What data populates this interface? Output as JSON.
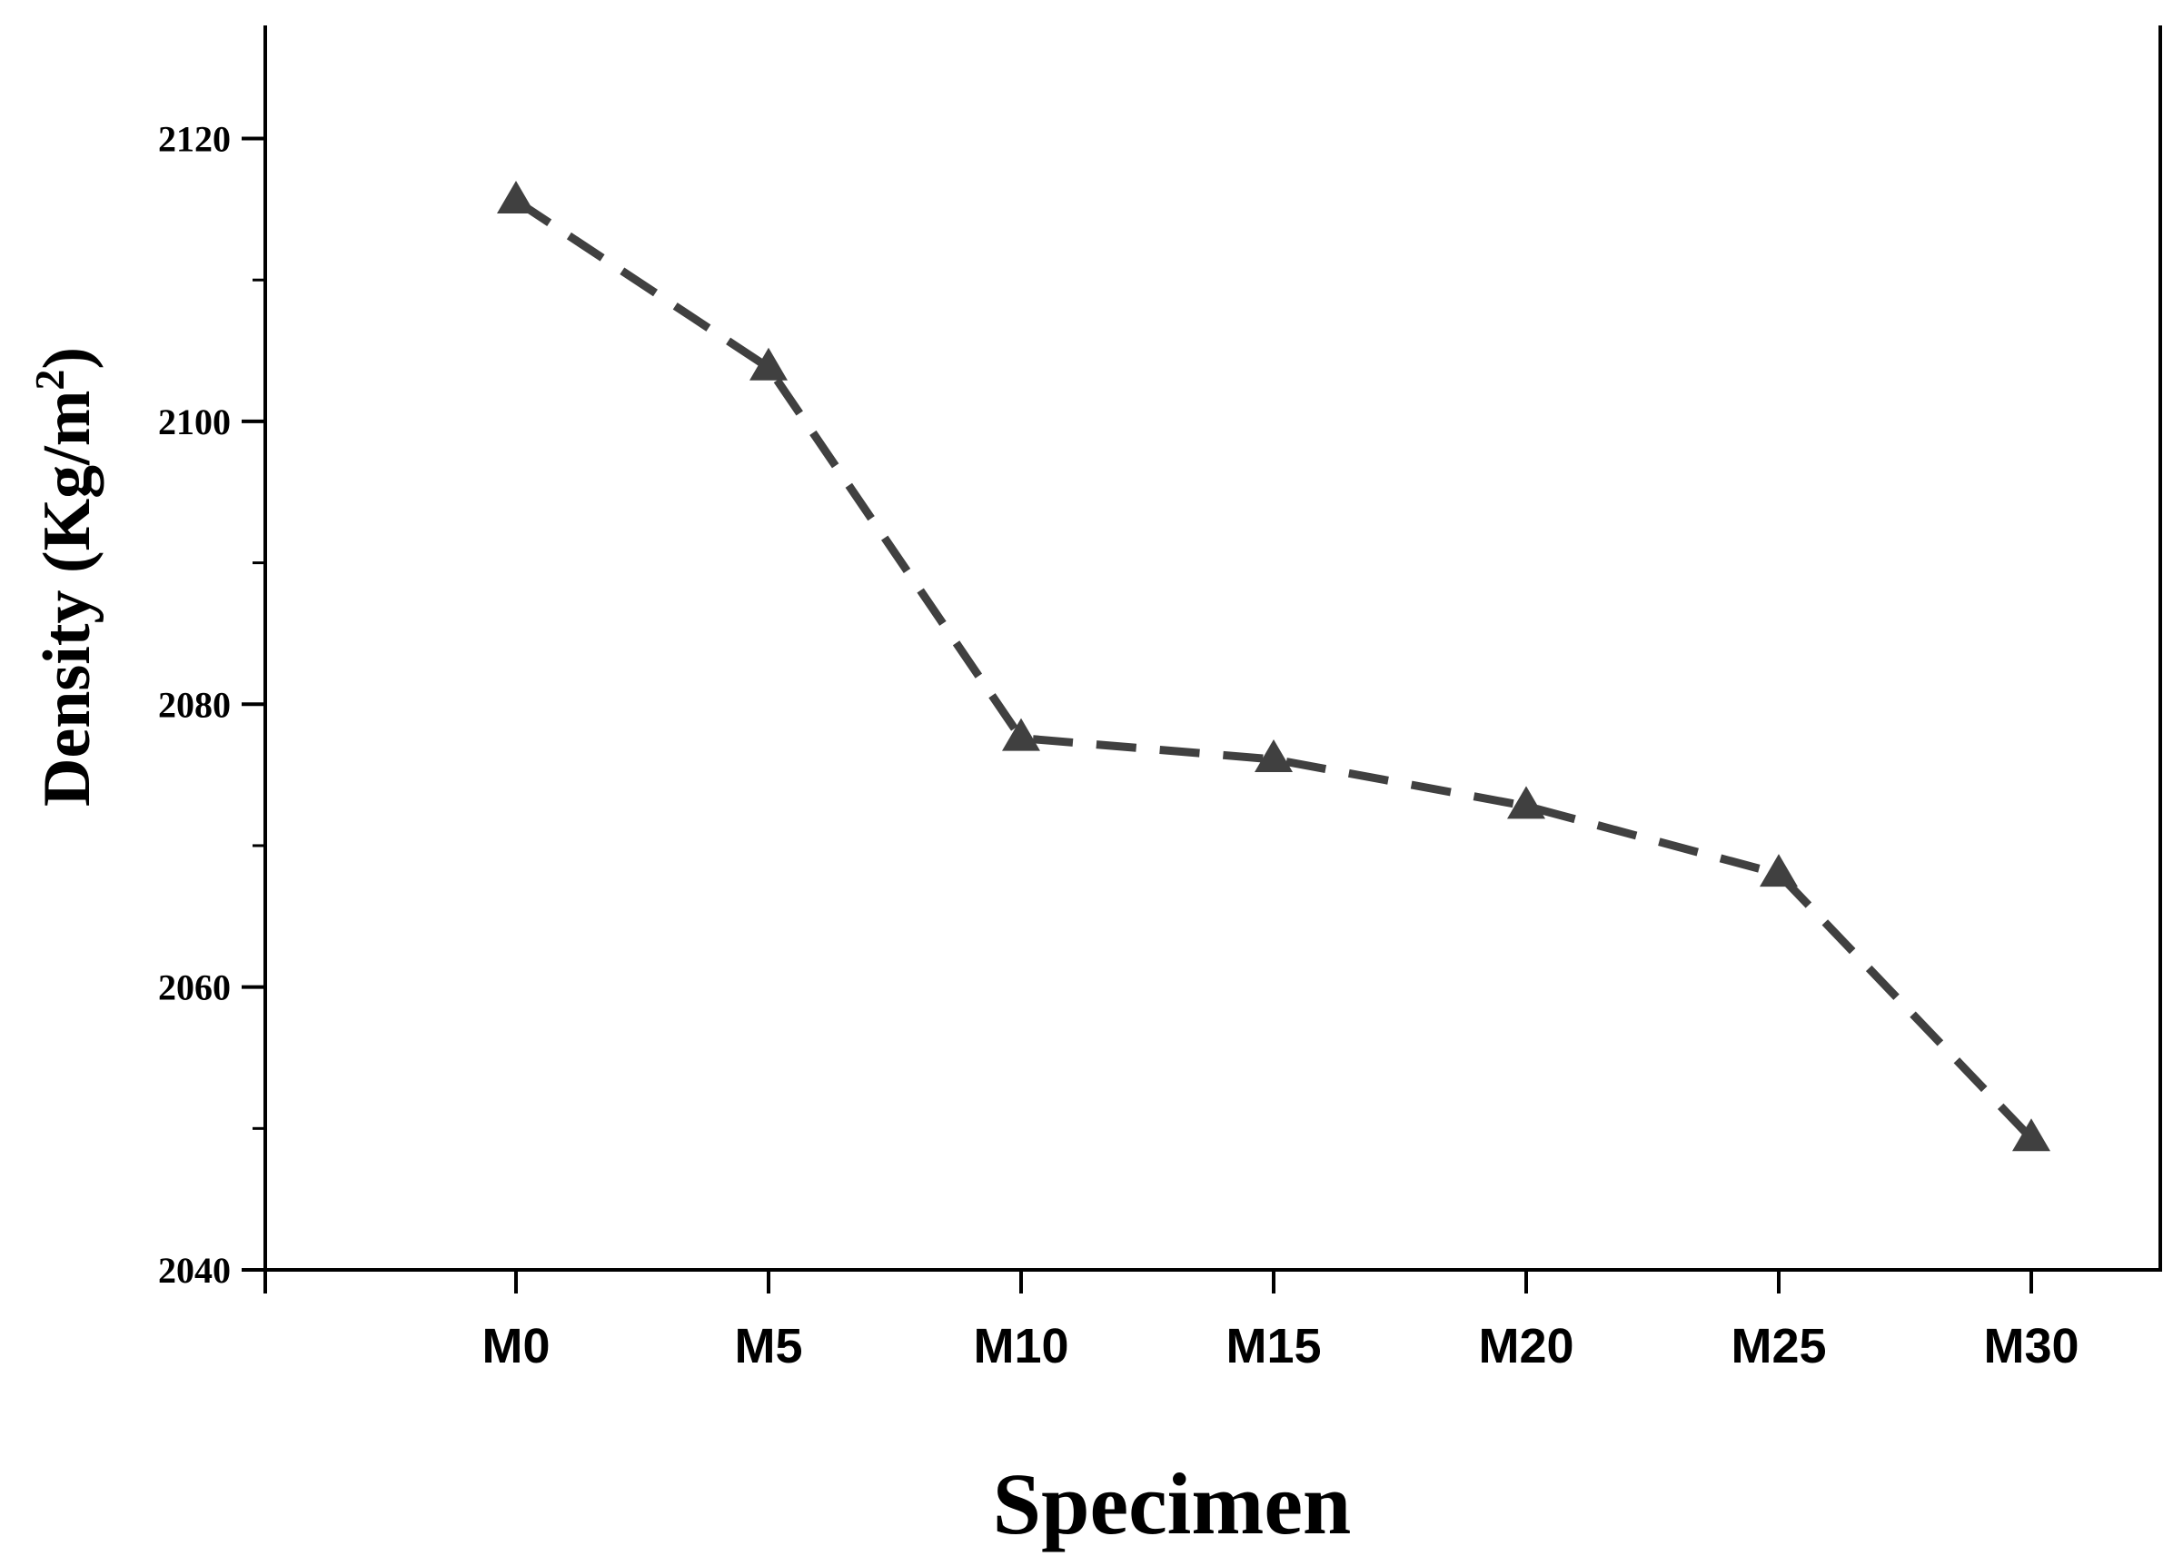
{
  "chart_data": {
    "type": "line",
    "title": "",
    "xlabel": "Specimen",
    "ylabel": "Density (Kg/m",
    "ylabel_superscript": "2",
    "ylabel_suffix": ")",
    "categories": [
      "M0",
      "M5",
      "M10",
      "M15",
      "M20",
      "M25",
      "M30"
    ],
    "series": [
      {
        "values": [
          2115.6,
          2103.8,
          2077.6,
          2076.1,
          2072.8,
          2068.0,
          2049.3
        ],
        "color": "#404040",
        "line_style": "dashed",
        "marker": "triangle-up"
      }
    ],
    "ylim": [
      2040,
      2128
    ],
    "y_major_ticks": [
      2040,
      2060,
      2080,
      2100,
      2120
    ],
    "y_tick_labels": [
      "2040",
      "2060",
      "2080",
      "2100",
      "2120"
    ],
    "grid": false,
    "legend": "none"
  }
}
